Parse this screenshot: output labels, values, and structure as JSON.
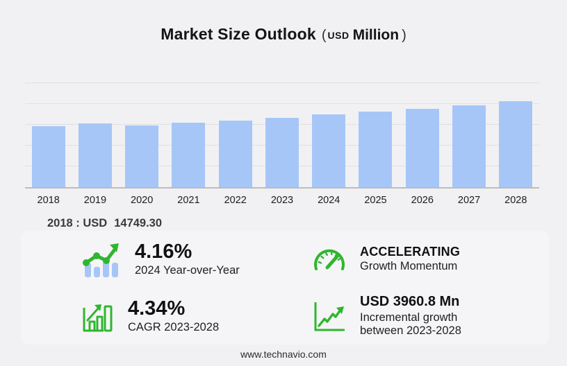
{
  "title": {
    "main": "Market Size Outlook",
    "open": "(",
    "currency": "USD",
    "unit": "Million",
    "close": ")"
  },
  "chart_data": {
    "type": "bar",
    "title": "Market Size Outlook (USD Million)",
    "categories": [
      "2018",
      "2019",
      "2020",
      "2021",
      "2022",
      "2023",
      "2024",
      "2025",
      "2026",
      "2027",
      "2028"
    ],
    "values": [
      14749.3,
      15400,
      14900,
      15500,
      16080,
      16736,
      17433,
      18140,
      18890,
      19720,
      20697
    ],
    "xlabel": "",
    "ylabel": "USD Million",
    "ylim": [
      0,
      25000
    ],
    "gridline_step": 5000,
    "grid": true,
    "legend": false,
    "bar_color": "#a6c6f7",
    "annotation": "2018 : USD 14749.30"
  },
  "annotation": {
    "prefix": "2018 : USD",
    "value": "14749.30"
  },
  "stats": [
    {
      "icon": "trend-bars-icon",
      "value": "4.16%",
      "label": "2024 Year-over-Year"
    },
    {
      "icon": "speedometer-icon",
      "value": "ACCELERATING",
      "label": "Growth Momentum"
    },
    {
      "icon": "bar-growth-icon",
      "value": "4.34%",
      "label": "CAGR 2023-2028"
    },
    {
      "icon": "line-growth-icon",
      "value": "USD 3960.8 Mn",
      "label": "Incremental growth",
      "label2": "between 2023-2028"
    }
  ],
  "footer": {
    "url": "www.technavio.com"
  },
  "colors": {
    "background": "#f1f1f3",
    "panel": "#f5f5f7",
    "bar": "#a6c6f7",
    "green": "#2fb62f",
    "gridline": "#e0e0e2",
    "axis": "#bcbcbe"
  }
}
